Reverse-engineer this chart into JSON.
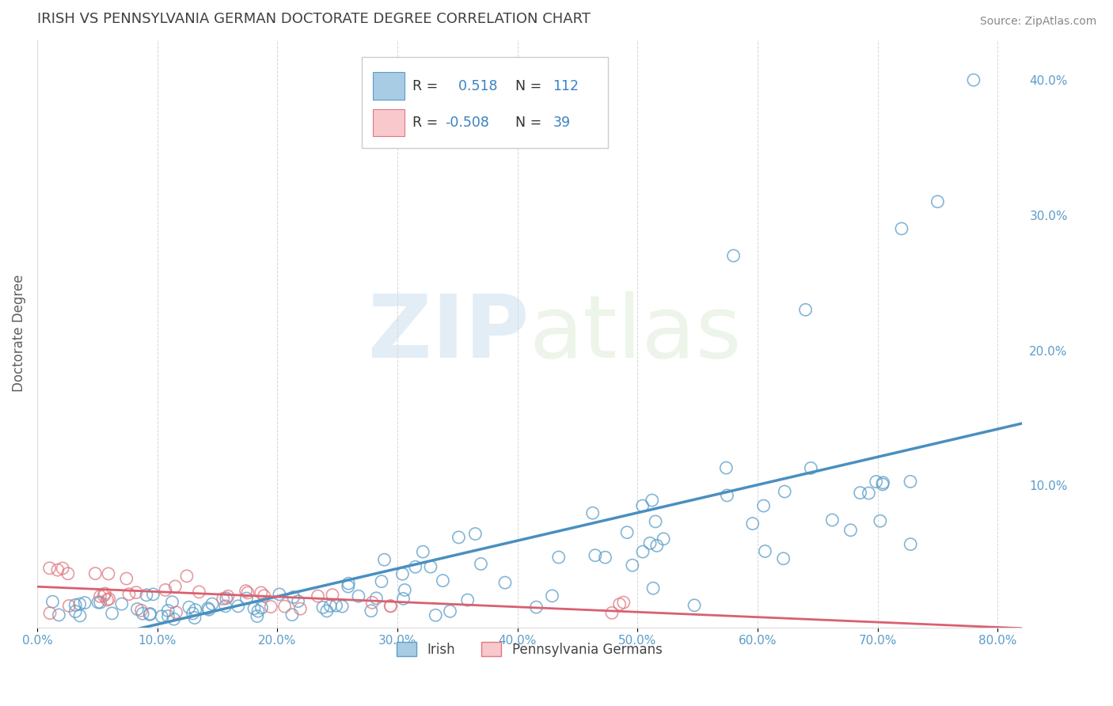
{
  "title": "IRISH VS PENNSYLVANIA GERMAN DOCTORATE DEGREE CORRELATION CHART",
  "source": "Source: ZipAtlas.com",
  "ylabel": "Doctorate Degree",
  "watermark": "ZIPatlas",
  "xlim": [
    0.0,
    0.82
  ],
  "ylim": [
    -0.005,
    0.43
  ],
  "xticks": [
    0.0,
    0.1,
    0.2,
    0.3,
    0.4,
    0.5,
    0.6,
    0.7,
    0.8
  ],
  "xticklabels": [
    "0.0%",
    "10.0%",
    "20.0%",
    "30.0%",
    "40.0%",
    "50.0%",
    "60.0%",
    "70.0%",
    "80.0%"
  ],
  "yticks_right": [
    0.1,
    0.2,
    0.3,
    0.4
  ],
  "yticklabels_right": [
    "10.0%",
    "20.0%",
    "30.0%",
    "40.0%"
  ],
  "legend_labels": [
    "Irish",
    "Pennsylvania Germans"
  ],
  "irish_color": "#a8cce4",
  "irish_edge": "#5b9dc8",
  "pa_color": "#f8c8cc",
  "pa_edge": "#e07880",
  "irish_line_color": "#4a8fc0",
  "pa_line_color": "#d96070",
  "R_irish": 0.518,
  "N_irish": 112,
  "R_pa": -0.508,
  "N_pa": 39,
  "background_color": "#ffffff",
  "grid_color": "#cccccc",
  "title_color": "#404040",
  "axis_label_color": "#606060",
  "tick_color": "#5b9dc8",
  "label_box_color": "#333333",
  "val_box_color": "#3a82c4"
}
